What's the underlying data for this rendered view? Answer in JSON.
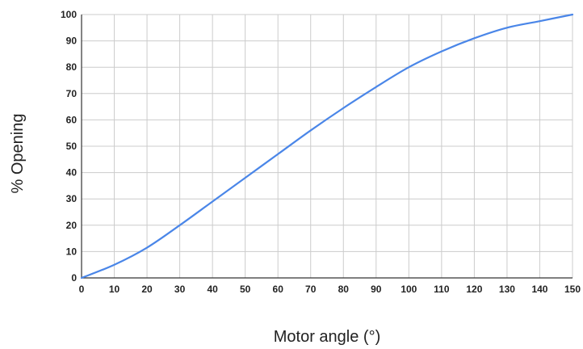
{
  "chart_data": {
    "type": "line",
    "title": "",
    "xlabel": "Motor angle (°)",
    "ylabel": "% Opening",
    "xlim": [
      0,
      150
    ],
    "ylim": [
      0,
      100
    ],
    "x_ticks": [
      0,
      10,
      20,
      30,
      40,
      50,
      60,
      70,
      80,
      90,
      100,
      110,
      120,
      130,
      140,
      150
    ],
    "y_ticks": [
      0,
      10,
      20,
      30,
      40,
      50,
      60,
      70,
      80,
      90,
      100
    ],
    "grid": true,
    "legend": "none",
    "series": [
      {
        "color": "#4a86e8",
        "x": [
          0,
          10,
          20,
          30,
          40,
          50,
          60,
          70,
          80,
          90,
          100,
          110,
          120,
          130,
          140,
          150
        ],
        "y": [
          0,
          5,
          11.5,
          20,
          29,
          38,
          47,
          56,
          64.5,
          72.5,
          80,
          86,
          91,
          95,
          97.5,
          100
        ]
      }
    ]
  }
}
